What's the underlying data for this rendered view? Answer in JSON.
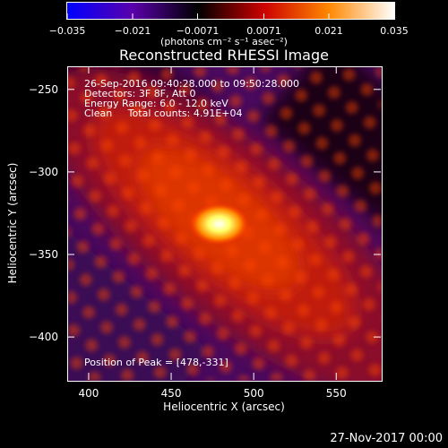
{
  "chart_data": {
    "type": "heatmap",
    "title": "Reconstructed RHESSI Image",
    "info_lines": [
      "26-Sep-2016 09:40:28.000 to 09:50:28.000",
      "Detectors: 3F 8F, Att 0",
      "Energy Range: 6.0 - 12.0 keV",
      "Clean     Total counts: 4.91E+04"
    ],
    "peak_label": "Position of Peak = [478,-331]",
    "peak": {
      "x": 478,
      "y": -331
    },
    "xlabel": "Heliocentric X (arcsec)",
    "ylabel": "Heliocentric Y (arcsec)",
    "xlim": [
      387,
      577
    ],
    "ylim": [
      -426,
      -236
    ],
    "x_ticks": [
      "400",
      "450",
      "500",
      "550"
    ],
    "y_ticks": [
      "−250",
      "−300",
      "−350",
      "−400"
    ],
    "colorbar": {
      "units_label": "(photons cm⁻² s⁻¹ asec⁻²)",
      "range": [
        -0.035,
        0.035
      ],
      "ticks": [
        "−0.035",
        "−0.021",
        "−0.0071",
        "0.0071",
        "0.021",
        "0.035"
      ],
      "colors": [
        "#0000ff",
        "#5a00aa",
        "#000000",
        "#cc0000",
        "#ff8800",
        "#ffffff"
      ]
    },
    "timestamp": "27-Nov-2017 00:00"
  }
}
